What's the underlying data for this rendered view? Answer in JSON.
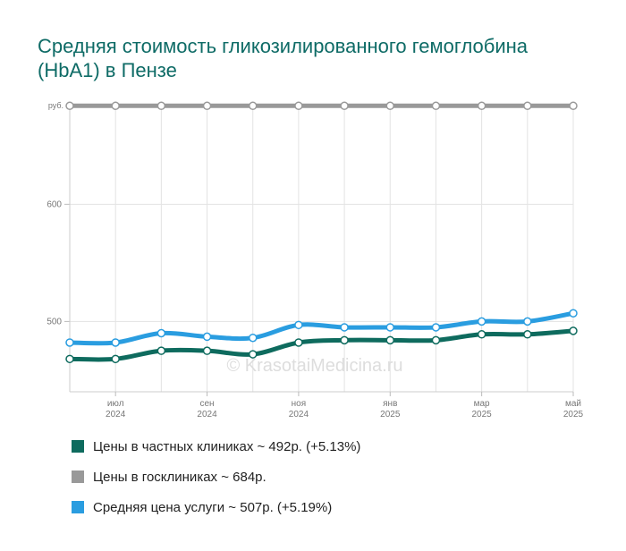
{
  "title": "Средняя стоимость гликозилированного гемоглобина (HbA1) в Пензе",
  "watermark": "© KrasotaiMedicina.ru",
  "chart_data": {
    "type": "line",
    "ylabel": "руб.",
    "ylim": [
      440,
      685
    ],
    "yticks": [
      500,
      600
    ],
    "x": [
      "2024-06",
      "2024-07",
      "2024-08",
      "2024-09",
      "2024-10",
      "2024-11",
      "2024-12",
      "2025-01",
      "2025-02",
      "2025-03",
      "2025-04",
      "2025-05"
    ],
    "xtick_labels": [
      {
        "x": "2024-07",
        "month": "июл",
        "year": "2024"
      },
      {
        "x": "2024-09",
        "month": "сен",
        "year": "2024"
      },
      {
        "x": "2024-11",
        "month": "ноя",
        "year": "2024"
      },
      {
        "x": "2025-01",
        "month": "янв",
        "year": "2025"
      },
      {
        "x": "2025-03",
        "month": "мар",
        "year": "2025"
      },
      {
        "x": "2025-05",
        "month": "май",
        "year": "2025"
      }
    ],
    "grid": true,
    "series": [
      {
        "name": "Цены в частных клиниках ~ 492р. (+5.13%)",
        "color": "#0e6b5e",
        "values": [
          468,
          468,
          475,
          475,
          472,
          482,
          484,
          484,
          484,
          489,
          489,
          492
        ]
      },
      {
        "name": "Цены в госклиниках ~ 684р.",
        "color": "#999999",
        "values": [
          684,
          684,
          684,
          684,
          684,
          684,
          684,
          684,
          684,
          684,
          684,
          684
        ]
      },
      {
        "name": "Средняя цена услуги ~ 507р. (+5.19%)",
        "color": "#2a9de0",
        "values": [
          482,
          482,
          490,
          487,
          486,
          497,
          495,
          495,
          495,
          500,
          500,
          507
        ]
      }
    ]
  }
}
